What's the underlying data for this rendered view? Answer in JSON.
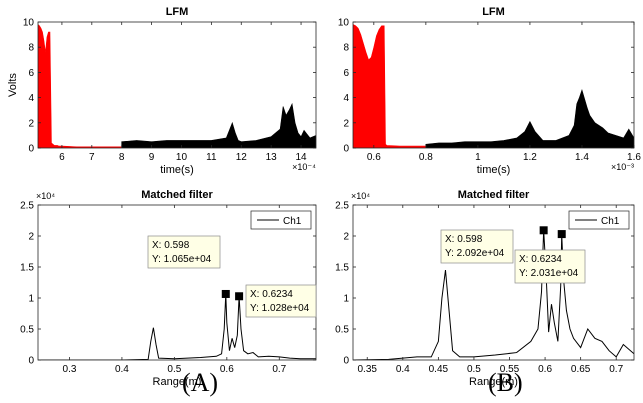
{
  "labels": {
    "a": "(A)",
    "b": "(B)"
  },
  "chart_data": [
    {
      "id": "A-top",
      "type": "line",
      "title": "LFM",
      "xlabel": "time(s)",
      "ylabel": "Volts",
      "xlim": [
        5.2,
        14.5
      ],
      "ylim": [
        0,
        10
      ],
      "x_exponent": "×10⁻⁴",
      "xticks": [
        6,
        7,
        8,
        9,
        10,
        11,
        12,
        13,
        14
      ],
      "yticks": [
        0,
        2,
        4,
        6,
        8,
        10
      ],
      "series": [
        {
          "color": "#ff0000",
          "style": "envelope",
          "x": [
            5.2,
            5.25,
            5.3,
            5.35,
            5.4,
            5.45,
            5.5,
            5.55,
            5.6,
            5.65,
            5.7,
            5.75,
            5.8,
            5.85,
            5.9,
            5.95,
            6.0,
            6.5,
            7.0,
            7.5,
            8.0,
            9.0,
            10.0,
            11.0,
            12.0,
            13.0,
            14.0,
            14.5
          ],
          "y": [
            9.8,
            9.7,
            9.5,
            9.2,
            8.5,
            7.6,
            8.8,
            9.2,
            9.2,
            0.4,
            0.3,
            0.2,
            0.2,
            0.2,
            0.15,
            0.15,
            0.15,
            0.1,
            0.1,
            0.1,
            0.1,
            0.1,
            0.1,
            0.1,
            0.1,
            0.1,
            0.1,
            0.1
          ]
        },
        {
          "color": "#000000",
          "style": "envelope",
          "x": [
            8.0,
            8.5,
            9.0,
            9.5,
            10.0,
            10.5,
            11.0,
            11.5,
            11.6,
            11.7,
            11.8,
            11.9,
            12.0,
            12.5,
            13.0,
            13.3,
            13.4,
            13.5,
            13.6,
            13.7,
            13.8,
            13.9,
            14.0,
            14.1,
            14.2,
            14.3,
            14.4,
            14.5
          ],
          "y": [
            0.5,
            0.6,
            0.5,
            0.6,
            0.6,
            0.6,
            0.6,
            0.8,
            1.4,
            2.0,
            1.2,
            0.6,
            0.5,
            0.6,
            0.9,
            1.5,
            3.3,
            2.6,
            3.0,
            3.5,
            2.0,
            1.2,
            0.9,
            1.4,
            1.1,
            0.8,
            0.9,
            1.0
          ]
        }
      ]
    },
    {
      "id": "B-top",
      "type": "line",
      "title": "LFM",
      "xlabel": "time(s)",
      "ylabel": "",
      "xlim": [
        0.52,
        1.6
      ],
      "ylim": [
        0,
        10
      ],
      "x_exponent": "×10⁻³",
      "xticks": [
        0.6,
        0.8,
        1,
        1.2,
        1.4,
        1.6
      ],
      "xtick_labels": [
        "0.6",
        "0.8",
        "1",
        "1.2",
        "1.4",
        "1.6"
      ],
      "yticks": [
        0,
        2,
        4,
        6,
        8,
        10
      ],
      "series": [
        {
          "color": "#ff0000",
          "style": "envelope",
          "x": [
            0.52,
            0.53,
            0.54,
            0.55,
            0.56,
            0.57,
            0.58,
            0.59,
            0.6,
            0.61,
            0.62,
            0.63,
            0.64,
            0.645,
            0.65,
            0.7,
            0.8,
            1.0,
            1.2,
            1.4,
            1.6
          ],
          "y": [
            9.8,
            9.7,
            9.5,
            9.0,
            8.3,
            7.6,
            7.0,
            7.2,
            8.0,
            8.9,
            9.4,
            9.7,
            9.7,
            0.3,
            0.2,
            0.15,
            0.15,
            0.1,
            0.1,
            0.1,
            0.1
          ]
        },
        {
          "color": "#000000",
          "style": "envelope",
          "x": [
            0.8,
            0.85,
            0.9,
            0.95,
            1.0,
            1.05,
            1.1,
            1.15,
            1.18,
            1.2,
            1.22,
            1.25,
            1.3,
            1.35,
            1.37,
            1.38,
            1.39,
            1.4,
            1.41,
            1.42,
            1.43,
            1.45,
            1.48,
            1.5,
            1.53,
            1.56,
            1.58,
            1.6
          ],
          "y": [
            0.3,
            0.4,
            0.4,
            0.5,
            0.5,
            0.5,
            0.6,
            0.8,
            1.3,
            2.1,
            1.3,
            0.6,
            0.6,
            1.0,
            1.8,
            3.5,
            4.0,
            4.6,
            3.9,
            3.2,
            2.6,
            2.0,
            1.6,
            1.2,
            1.0,
            0.8,
            1.5,
            0.8
          ]
        }
      ]
    },
    {
      "id": "A-bottom",
      "type": "line",
      "title": "Matched filter",
      "xlabel": "Range(m)",
      "ylabel": "",
      "xlim": [
        0.24,
        0.77
      ],
      "ylim": [
        0,
        2.5
      ],
      "y_exponent": "×10⁴",
      "xticks": [
        0.3,
        0.4,
        0.5,
        0.6,
        0.7
      ],
      "yticks": [
        0,
        0.5,
        1,
        1.5,
        2,
        2.5
      ],
      "legend": {
        "entries": [
          "Ch1"
        ],
        "placement": "top-right"
      },
      "series": [
        {
          "name": "Ch1",
          "color": "#000000",
          "style": "line",
          "x": [
            0.24,
            0.3,
            0.4,
            0.45,
            0.455,
            0.46,
            0.465,
            0.47,
            0.5,
            0.55,
            0.58,
            0.59,
            0.595,
            0.598,
            0.6,
            0.605,
            0.61,
            0.615,
            0.62,
            0.6234,
            0.627,
            0.632,
            0.64,
            0.65,
            0.66,
            0.68,
            0.7,
            0.72,
            0.74,
            0.77
          ],
          "y": [
            0,
            0,
            0,
            0.01,
            0.3,
            0.52,
            0.25,
            0.03,
            0.02,
            0.04,
            0.06,
            0.1,
            0.5,
            1.065,
            0.6,
            0.15,
            0.35,
            0.2,
            0.4,
            1.028,
            0.5,
            0.15,
            0.1,
            0.12,
            0.05,
            0.06,
            0.05,
            0.03,
            0.02,
            0.02
          ]
        }
      ],
      "datatips": [
        {
          "x": 0.598,
          "y": 1.065,
          "lines": [
            "X: 0.598",
            "Y: 1.065e+04"
          ]
        },
        {
          "x": 0.6234,
          "y": 1.028,
          "lines": [
            "X: 0.6234",
            "Y: 1.028e+04"
          ]
        }
      ]
    },
    {
      "id": "B-bottom",
      "type": "line",
      "title": "Matched filter",
      "xlabel": "Range(m)",
      "ylabel": "",
      "xlim": [
        0.33,
        0.725
      ],
      "ylim": [
        0,
        2.5
      ],
      "y_exponent": "×10⁴",
      "xticks": [
        0.35,
        0.4,
        0.45,
        0.5,
        0.55,
        0.6,
        0.65,
        0.7
      ],
      "yticks": [
        0,
        0.5,
        1,
        1.5,
        2,
        2.5
      ],
      "legend": {
        "entries": [
          "Ch1"
        ],
        "placement": "top-right"
      },
      "series": [
        {
          "name": "Ch1",
          "color": "#000000",
          "style": "line",
          "x": [
            0.33,
            0.38,
            0.42,
            0.44,
            0.45,
            0.455,
            0.46,
            0.465,
            0.47,
            0.48,
            0.5,
            0.53,
            0.56,
            0.58,
            0.59,
            0.595,
            0.598,
            0.601,
            0.605,
            0.609,
            0.613,
            0.618,
            0.622,
            0.6234,
            0.626,
            0.63,
            0.635,
            0.64,
            0.65,
            0.66,
            0.67,
            0.68,
            0.69,
            0.7,
            0.71,
            0.725
          ],
          "y": [
            0,
            0.01,
            0.05,
            0.05,
            0.3,
            1.0,
            1.45,
            0.8,
            0.15,
            0.05,
            0.05,
            0.08,
            0.12,
            0.3,
            0.5,
            1.1,
            2.092,
            1.5,
            0.45,
            0.9,
            0.6,
            0.3,
            1.2,
            2.031,
            1.3,
            0.8,
            0.5,
            0.35,
            0.2,
            0.5,
            0.35,
            0.3,
            0.15,
            0.05,
            0.25,
            0.1
          ]
        }
      ],
      "datatips": [
        {
          "x": 0.598,
          "y": 2.092,
          "lines": [
            "X: 0.598",
            "Y: 2.092e+04"
          ]
        },
        {
          "x": 0.6234,
          "y": 2.031,
          "lines": [
            "X: 0.6234",
            "Y: 2.031e+04"
          ]
        }
      ]
    }
  ]
}
